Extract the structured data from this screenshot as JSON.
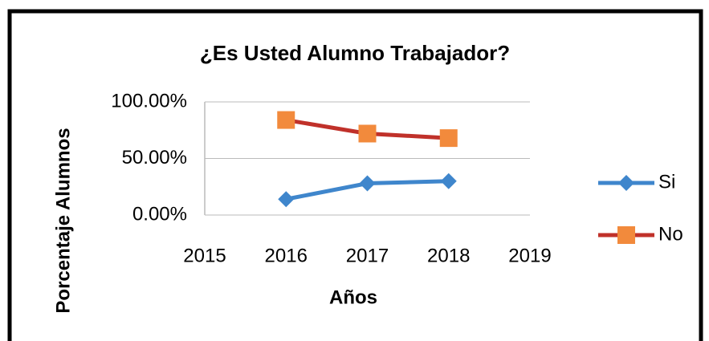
{
  "chart_data": {
    "type": "line",
    "title": "¿Es Usted Alumno Trabajador?",
    "x_label": "Años",
    "y_label": "Porcentaje Alumnos",
    "x": [
      2016,
      2017,
      2018
    ],
    "series": [
      {
        "name": "Si",
        "color": "#3f86cc",
        "marker_color": "#3f86cc",
        "marker": "diamond",
        "values": [
          14,
          28,
          30
        ]
      },
      {
        "name": "No",
        "color": "#c0312a",
        "marker_color": "#f28a3c",
        "marker": "square",
        "values": [
          84,
          72,
          68
        ]
      }
    ],
    "xlim": [
      2015,
      2019
    ],
    "xticks": [
      2015,
      2016,
      2017,
      2018,
      2019
    ],
    "ylim": [
      0,
      100
    ],
    "yticks": [
      {
        "value": 0,
        "label": "0.00%"
      },
      {
        "value": 50,
        "label": "50.00%"
      },
      {
        "value": 100,
        "label": "100.00%"
      }
    ],
    "grid": true,
    "legend": "right"
  }
}
